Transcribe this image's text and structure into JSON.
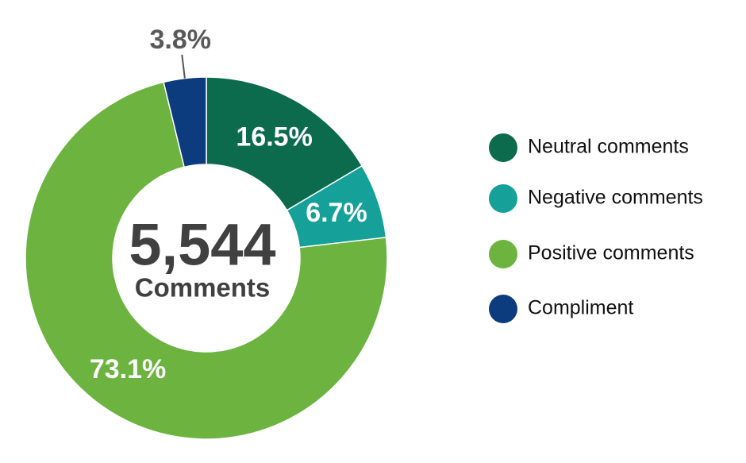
{
  "chart_data": {
    "type": "pie",
    "center_text": "5,544",
    "center_subtext": "Comments",
    "categories": [
      "Neutral comments",
      "Negative comments",
      "Positive comments",
      "Compliment"
    ],
    "values": [
      16.5,
      6.7,
      73.1,
      3.8
    ],
    "value_labels": [
      "16.5%",
      "6.7%",
      "73.1%",
      "3.8%"
    ],
    "colors": [
      "#0b6b4c",
      "#15a19a",
      "#6cb33f",
      "#0c3b7e"
    ],
    "legend": "right"
  }
}
